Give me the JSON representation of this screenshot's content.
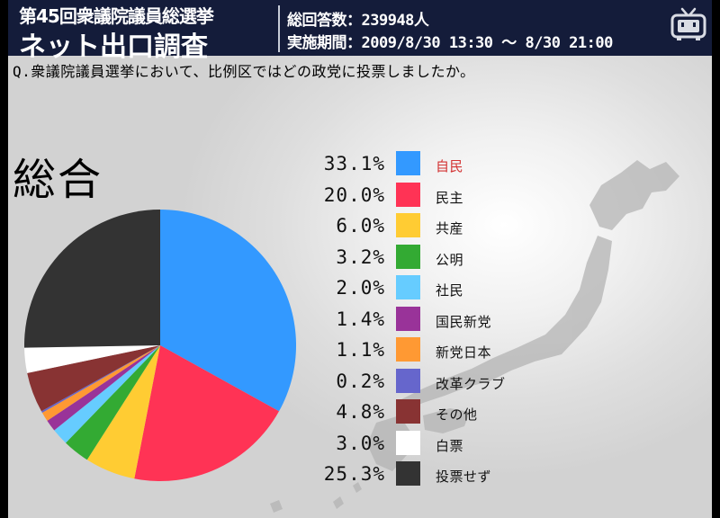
{
  "header": {
    "subtitle": "第45回衆議院議員総選挙",
    "title": "ネット出口調査",
    "total_answers": "総回答数：239948人",
    "period": "実施期間：2009/8/30 13:30 ～ 8/30 21:00"
  },
  "question": "Q.衆議院議員選挙において、比例区ではどの政党に投票しましたか。",
  "chart_data": {
    "type": "pie",
    "title": "総合",
    "start": "12 o'clock",
    "direction": "clockwise",
    "slices": [
      {
        "label": "自民",
        "value": 33.1,
        "display": "33.1%",
        "color": "#3399ff",
        "label_color": "#d33333"
      },
      {
        "label": "民主",
        "value": 20.0,
        "display": "20.0%",
        "color": "#ff3355",
        "label_color": "#111111"
      },
      {
        "label": "共産",
        "value": 6.0,
        "display": "6.0%",
        "color": "#ffcc33",
        "label_color": "#111111"
      },
      {
        "label": "公明",
        "value": 3.2,
        "display": "3.2%",
        "color": "#33aa33",
        "label_color": "#111111"
      },
      {
        "label": "社民",
        "value": 2.0,
        "display": "2.0%",
        "color": "#66ccff",
        "label_color": "#111111"
      },
      {
        "label": "国民新党",
        "value": 1.4,
        "display": "1.4%",
        "color": "#993399",
        "label_color": "#111111"
      },
      {
        "label": "新党日本",
        "value": 1.1,
        "display": "1.1%",
        "color": "#ff9933",
        "label_color": "#111111"
      },
      {
        "label": "改革クラブ",
        "value": 0.2,
        "display": "0.2%",
        "color": "#6666cc",
        "label_color": "#111111"
      },
      {
        "label": "その他",
        "value": 4.8,
        "display": "4.8%",
        "color": "#883333",
        "label_color": "#111111"
      },
      {
        "label": "白票",
        "value": 3.0,
        "display": "3.0%",
        "color": "#ffffff",
        "label_color": "#111111"
      },
      {
        "label": "投票せず",
        "value": 25.3,
        "display": "25.3%",
        "color": "#333333",
        "label_color": "#111111"
      }
    ]
  },
  "icons": {
    "logo": "niconico-tv-icon"
  }
}
